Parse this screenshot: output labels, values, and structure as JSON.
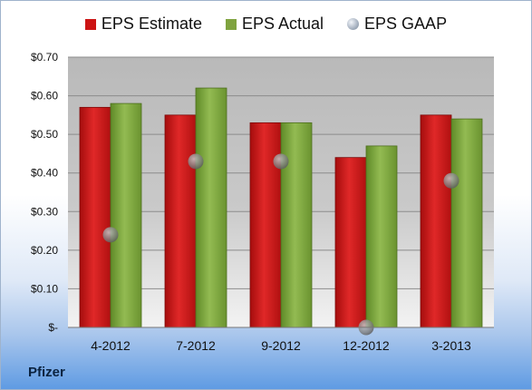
{
  "chart_data": {
    "type": "bar",
    "title": "",
    "categories": [
      "4-2012",
      "7-2012",
      "9-2012",
      "12-2012",
      "3-2013"
    ],
    "series": [
      {
        "name": "EPS Estimate",
        "kind": "bar",
        "values": [
          0.57,
          0.55,
          0.53,
          0.44,
          0.55
        ],
        "color": "#cc1414"
      },
      {
        "name": "EPS Actual",
        "kind": "bar",
        "values": [
          0.58,
          0.62,
          0.53,
          0.47,
          0.54
        ],
        "color": "#7fa33f"
      },
      {
        "name": "EPS GAAP",
        "kind": "marker",
        "values": [
          0.24,
          0.43,
          0.43,
          0.0,
          0.38
        ],
        "color": "#8a8a8a"
      }
    ],
    "yticks": [
      "$-",
      "$0.10",
      "$0.20",
      "$0.30",
      "$0.40",
      "$0.50",
      "$0.60",
      "$0.70"
    ],
    "ylim": [
      0,
      0.7
    ],
    "grid": true,
    "legend_position": "top-center"
  },
  "footer": {
    "company": "Pfizer"
  }
}
